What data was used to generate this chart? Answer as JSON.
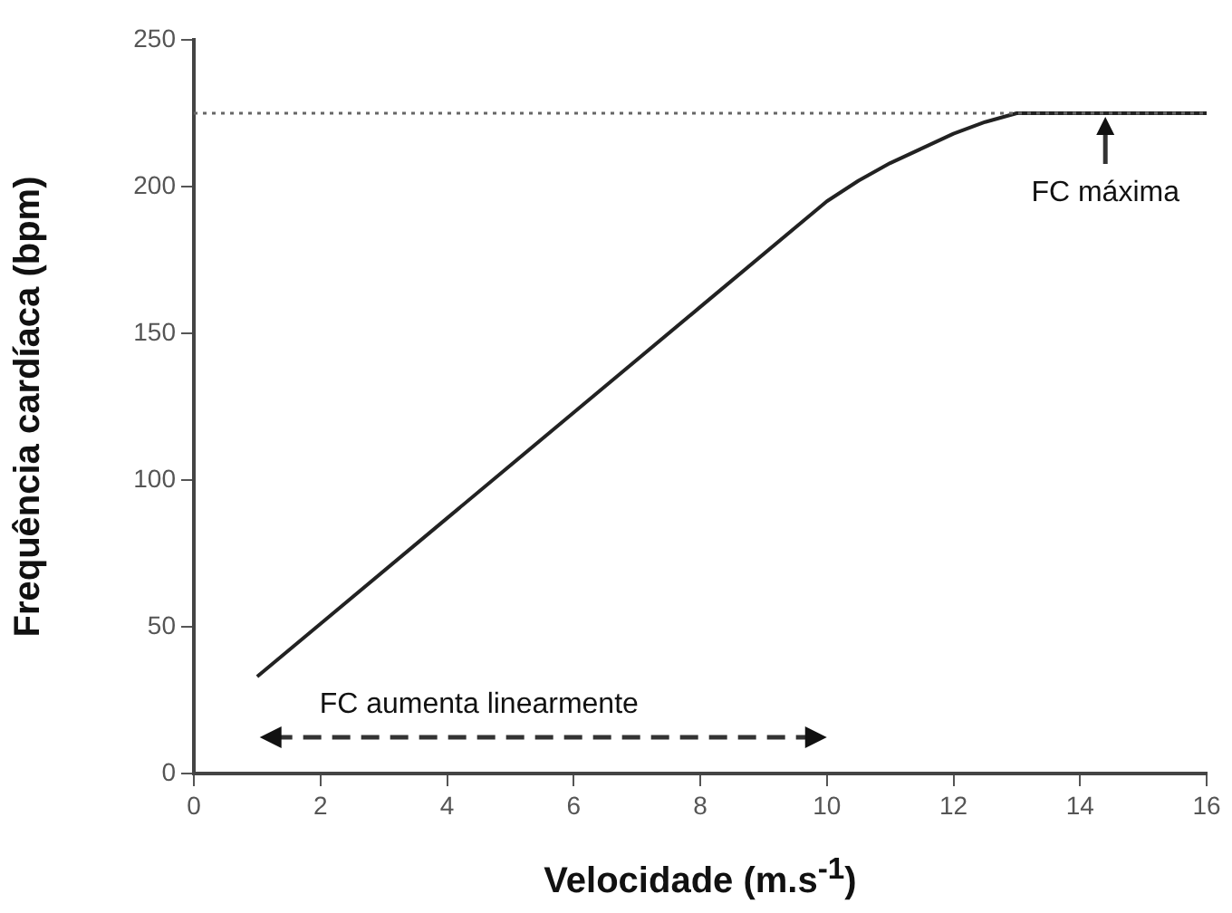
{
  "chart_data": {
    "type": "line",
    "xlabel": "Velocidade (m.s$^{-1}$)",
    "ylabel": "Frequência cardíaca (bpm)",
    "x": [
      1,
      2,
      4,
      6,
      8,
      10,
      10.5,
      11,
      11.5,
      12,
      12.5,
      13,
      14,
      15,
      16
    ],
    "series": [
      {
        "color": "#222222",
        "values": [
          33,
          51,
          87,
          123,
          159,
          195,
          202,
          208,
          213,
          218,
          222,
          225,
          225,
          225,
          225
        ]
      }
    ],
    "xlim": [
      0,
      16
    ],
    "xticks": [
      0,
      2,
      4,
      6,
      8,
      10,
      12,
      14,
      16
    ],
    "ylim": [
      0,
      250
    ],
    "yticks": [
      0,
      50,
      100,
      150,
      200,
      250
    ],
    "grid": false,
    "legend": false,
    "marker": "none",
    "line_style": "solid",
    "ref_lines": [
      {
        "axis": "y",
        "value": 225,
        "color": "#666666",
        "line_style": "dotted"
      }
    ],
    "annotations": [
      {
        "text": "FC máxima",
        "x": 14.4,
        "y": 225
      },
      "FC aumenta linearmente"
    ]
  }
}
